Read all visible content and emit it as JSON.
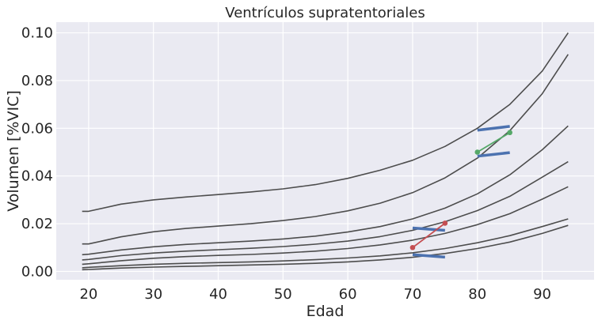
{
  "chart_data": {
    "type": "line",
    "title": "Ventrículos supratentoriales",
    "xlabel": "Edad",
    "ylabel": "Volumen [%VIC]",
    "xlim": [
      15,
      98
    ],
    "ylim": [
      -0.0035,
      0.1045
    ],
    "x_ticks": [
      20,
      30,
      40,
      50,
      60,
      70,
      80,
      90
    ],
    "x_tick_labels": [
      "20",
      "30",
      "40",
      "50",
      "60",
      "70",
      "80",
      "90"
    ],
    "y_ticks": [
      0.0,
      0.02,
      0.04,
      0.06,
      0.08,
      0.1
    ],
    "y_tick_labels": [
      "0.00",
      "0.02",
      "0.04",
      "0.06",
      "0.08",
      "0.10"
    ],
    "grid": true,
    "percentile_curves": {
      "color": "#4d4d4d",
      "x": [
        19,
        20,
        25,
        30,
        35,
        40,
        45,
        50,
        55,
        60,
        65,
        70,
        75,
        80,
        85,
        90,
        94
      ],
      "series": [
        {
          "values": [
            0.0252,
            0.0252,
            0.0282,
            0.03,
            0.0312,
            0.0322,
            0.0333,
            0.0346,
            0.0364,
            0.039,
            0.0424,
            0.0466,
            0.0524,
            0.06,
            0.07,
            0.084,
            0.1
          ]
        },
        {
          "values": [
            0.0115,
            0.0115,
            0.0145,
            0.0166,
            0.018,
            0.019,
            0.02,
            0.0213,
            0.023,
            0.0254,
            0.0286,
            0.033,
            0.0392,
            0.0475,
            0.059,
            0.0745,
            0.091
          ]
        },
        {
          "values": [
            0.007,
            0.0072,
            0.009,
            0.0103,
            0.0113,
            0.012,
            0.0127,
            0.0136,
            0.0148,
            0.0165,
            0.0188,
            0.022,
            0.0265,
            0.0325,
            0.0405,
            0.051,
            0.061
          ]
        },
        {
          "values": [
            0.0048,
            0.005,
            0.0066,
            0.0077,
            0.0085,
            0.0091,
            0.0097,
            0.0104,
            0.0114,
            0.0127,
            0.0146,
            0.0172,
            0.0208,
            0.0255,
            0.0315,
            0.0395,
            0.046
          ]
        },
        {
          "values": [
            0.003,
            0.0032,
            0.0045,
            0.0055,
            0.0062,
            0.0067,
            0.0071,
            0.0077,
            0.0085,
            0.0096,
            0.0111,
            0.0131,
            0.0159,
            0.0196,
            0.0242,
            0.0303,
            0.0355
          ]
        },
        {
          "values": [
            0.0015,
            0.0017,
            0.0024,
            0.003,
            0.0034,
            0.0037,
            0.004,
            0.0044,
            0.0049,
            0.0056,
            0.0065,
            0.0078,
            0.0096,
            0.012,
            0.015,
            0.0188,
            0.022
          ]
        },
        {
          "values": [
            0.0007,
            0.0008,
            0.0014,
            0.0018,
            0.0021,
            0.0024,
            0.0027,
            0.003,
            0.0034,
            0.004,
            0.0048,
            0.0059,
            0.0075,
            0.0096,
            0.0123,
            0.0159,
            0.0193
          ]
        }
      ]
    },
    "segments": [
      {
        "color": "#4c72b0",
        "x": [
          80,
          85
        ],
        "y": [
          0.0592,
          0.0608
        ]
      },
      {
        "color": "#4c72b0",
        "x": [
          80,
          85
        ],
        "y": [
          0.0483,
          0.0498
        ]
      },
      {
        "color": "#4c72b0",
        "x": [
          70,
          75
        ],
        "y": [
          0.0182,
          0.0172
        ]
      },
      {
        "color": "#4c72b0",
        "x": [
          70,
          75
        ],
        "y": [
          0.007,
          0.006
        ]
      }
    ],
    "point_series": [
      {
        "color": "#55a868",
        "x": [
          80,
          85
        ],
        "y": [
          0.05,
          0.0582
        ]
      },
      {
        "color": "#c44e52",
        "x": [
          70,
          75
        ],
        "y": [
          0.01,
          0.0202
        ]
      }
    ]
  }
}
